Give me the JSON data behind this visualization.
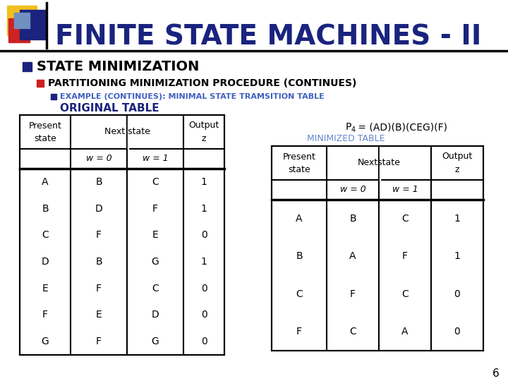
{
  "title": "FINITE STATE MACHINES - II",
  "title_color": "#1a237e",
  "bg_color": "#ffffff",
  "bullet1": "STATE MINIMIZATION",
  "bullet2": "PARTITIONING MINIMIZATION PROCEDURE (CONTINUES)",
  "bullet3": "EXAMPLE (CONTINUES): MINIMAL STATE TRAMSITION TABLE",
  "bullet4": "ORIGINAL TABLE",
  "p4_line1": "P₄ = (AD)(B)(CEG)(F)",
  "minimized_label": "MINIMIZED TABLE",
  "orig_rows": [
    [
      "A",
      "B",
      "C",
      "1"
    ],
    [
      "B",
      "D",
      "F",
      "1"
    ],
    [
      "C",
      "F",
      "E",
      "0"
    ],
    [
      "D",
      "B",
      "G",
      "1"
    ],
    [
      "E",
      "F",
      "C",
      "0"
    ],
    [
      "F",
      "E",
      "D",
      "0"
    ],
    [
      "G",
      "F",
      "G",
      "0"
    ]
  ],
  "min_rows": [
    [
      "A",
      "B",
      "C",
      "1"
    ],
    [
      "B",
      "A",
      "F",
      "1"
    ],
    [
      "C",
      "F",
      "C",
      "0"
    ],
    [
      "F",
      "C",
      "A",
      "0"
    ]
  ],
  "page_num": "6",
  "yellow": "#f0c020",
  "red": "#cc2222",
  "darkblue": "#1a237e",
  "medblue": "#4060a0",
  "lightblue": "#7090c0",
  "bullet_blue": "#1a237e",
  "bullet_red": "#cc2222",
  "example_blue": "#4060c0",
  "minimized_color": "#6688cc"
}
